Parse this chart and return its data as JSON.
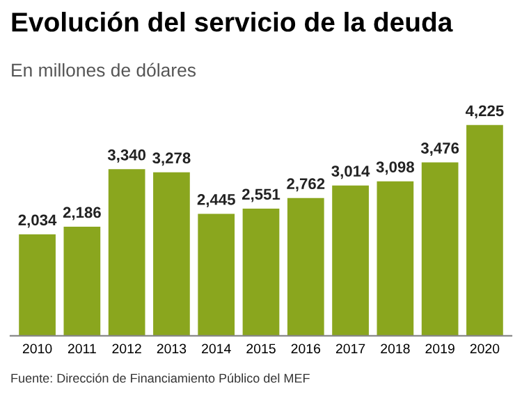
{
  "chart_data": {
    "type": "bar",
    "title": "Evolución del servicio de la deuda",
    "subtitle": "En millones de dólares",
    "categories": [
      "2010",
      "2011",
      "2012",
      "2013",
      "2014",
      "2015",
      "2016",
      "2017",
      "2018",
      "2019",
      "2020"
    ],
    "values": [
      2034,
      2186,
      3340,
      3278,
      2445,
      2551,
      2762,
      3014,
      3098,
      3476,
      4225
    ],
    "value_labels": [
      "2,034",
      "2,186",
      "3,340",
      "3,278",
      "2,445",
      "2,551",
      "2,762",
      "3,014",
      "3,098",
      "3,476",
      "4,225"
    ],
    "color": "#8aa61e",
    "grid": false,
    "legend": false,
    "annotations": [
      "Fuente: Dirección de Financiamiento Público del MEF"
    ]
  }
}
